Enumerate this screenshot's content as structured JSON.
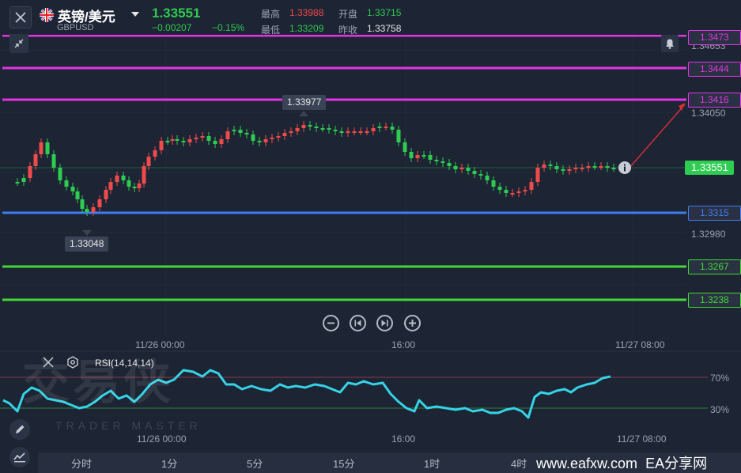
{
  "header": {
    "symbol_name": "英镑/美元",
    "symbol_code": "GBPUSD",
    "last_price": "1.33551",
    "change": "−0.00207",
    "change_pct": "−0.15%",
    "high_label": "最高",
    "high_value": "1.33988",
    "open_label": "开盘",
    "open_value": "1.33715",
    "low_label": "最低",
    "low_value": "1.33209",
    "prev_close_label": "昨收",
    "prev_close_value": "1.33758"
  },
  "price_axis": {
    "grid_labels": [
      "1.34653",
      "1.34050",
      "1.32980"
    ],
    "current_price": "1.33551"
  },
  "lines": [
    {
      "label": "1.3473",
      "color": "#e234e6"
    },
    {
      "label": "1.3444",
      "color": "#e234e6"
    },
    {
      "label": "1.3416",
      "color": "#e234e6"
    },
    {
      "label": "1.3315",
      "color": "#3f7df2"
    },
    {
      "label": "1.3267",
      "color": "#43d935"
    },
    {
      "label": "1.3238",
      "color": "#43d935"
    }
  ],
  "callouts": {
    "max_price": "1.33977",
    "min_price": "1.33048"
  },
  "time_axis": [
    "11/26 00:00",
    "16:00",
    "11/27 08:00"
  ],
  "rsi": {
    "label": "RSI(14,14,14)",
    "level_high": "70%",
    "level_low": "30%",
    "time_axis": [
      "11/26 00:00",
      "16:00",
      "11/27 08:00"
    ]
  },
  "timeframes": [
    "分时",
    "1分",
    "5分",
    "15分",
    "1时",
    "4时"
  ],
  "watermark": {
    "cn": "交易侠",
    "en": "TRADER MASTER"
  },
  "footer": {
    "site": "www.eafxw.com",
    "brand": "EA分享网"
  },
  "colors": {
    "up": "#ef4b4b",
    "down": "#2ecc51",
    "background": "#1d2433",
    "rsi": "#35d3e6"
  },
  "icons": [
    "close-icon",
    "uk-flag-icon",
    "chevron-down-icon",
    "collapse-icon",
    "bell-icon",
    "info-icon",
    "zoom-out-icon",
    "step-back-icon",
    "step-forward-icon",
    "zoom-in-icon",
    "close-indicator-icon",
    "settings-icon",
    "pencil-icon",
    "indicator-icon"
  ]
}
